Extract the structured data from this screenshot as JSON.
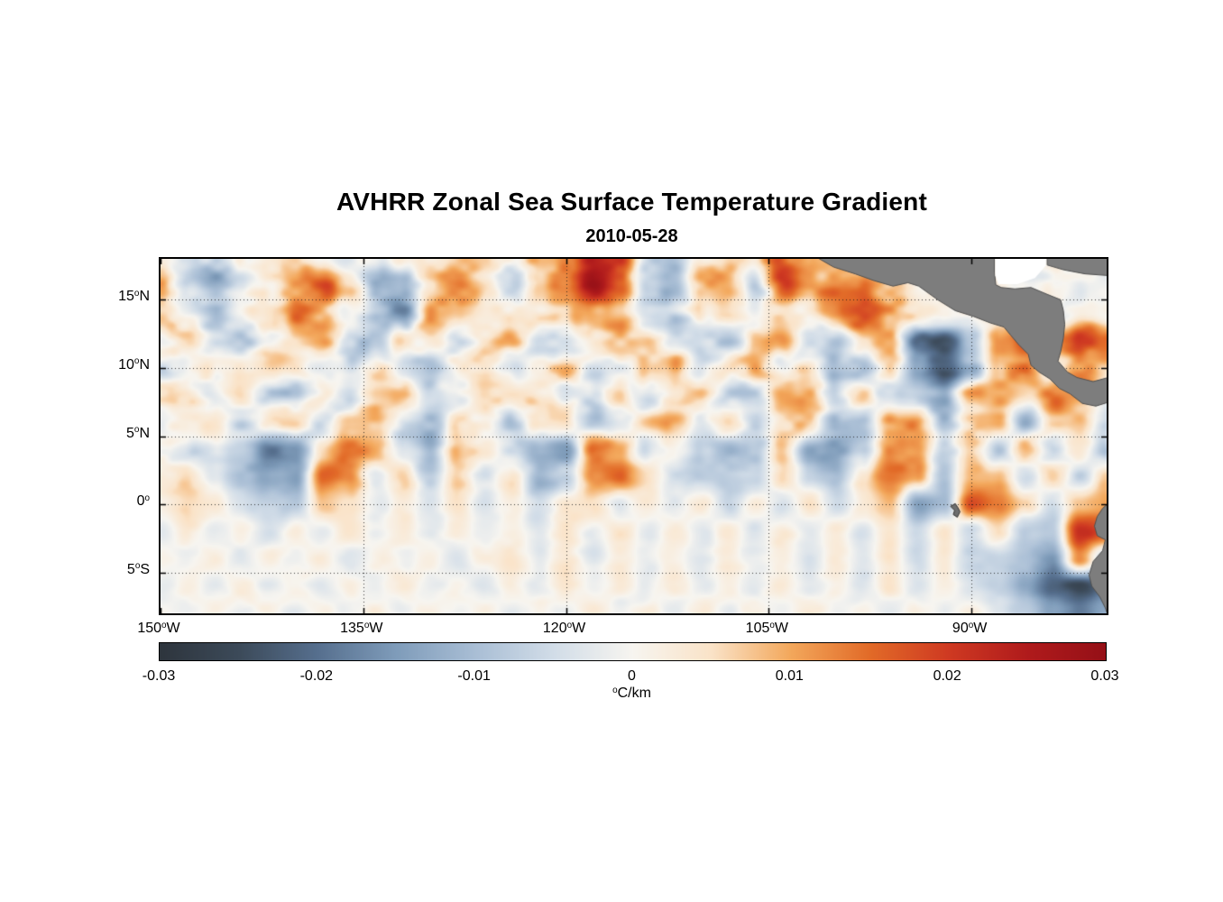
{
  "title": "AVHRR Zonal Sea Surface Temperature Gradient",
  "subtitle": "2010-05-28",
  "chart_data": {
    "type": "heatmap",
    "title": "AVHRR Zonal Sea Surface Temperature Gradient",
    "subtitle": "2010-05-28",
    "lon_range": [
      -150,
      -80
    ],
    "lat_range": [
      -8,
      18
    ],
    "grid_on": true,
    "x_ticks": [
      {
        "lon": -150,
        "prefix": "150",
        "sup": "o",
        "suffix": "W"
      },
      {
        "lon": -135,
        "prefix": "135",
        "sup": "o",
        "suffix": "W"
      },
      {
        "lon": -120,
        "prefix": "120",
        "sup": "o",
        "suffix": "W"
      },
      {
        "lon": -105,
        "prefix": "105",
        "sup": "o",
        "suffix": "W"
      },
      {
        "lon": -90,
        "prefix": "90",
        "sup": "o",
        "suffix": "W"
      }
    ],
    "y_ticks": [
      {
        "lat": 15,
        "prefix": "15",
        "sup": "o",
        "suffix": "N"
      },
      {
        "lat": 10,
        "prefix": "10",
        "sup": "o",
        "suffix": "N"
      },
      {
        "lat": 5,
        "prefix": "5",
        "sup": "o",
        "suffix": "N"
      },
      {
        "lat": 0,
        "prefix": "0",
        "sup": "o",
        "suffix": ""
      },
      {
        "lat": -5,
        "prefix": "5",
        "sup": "o",
        "suffix": "S"
      }
    ],
    "colorbar": {
      "min": -0.03,
      "max": 0.03,
      "ticks": [
        {
          "value": -0.03,
          "label": "-0.03"
        },
        {
          "value": -0.02,
          "label": "-0.02"
        },
        {
          "value": -0.01,
          "label": "-0.01"
        },
        {
          "value": 0,
          "label": "0"
        },
        {
          "value": 0.01,
          "label": "0.01"
        },
        {
          "value": 0.02,
          "label": "0.02"
        },
        {
          "value": 0.03,
          "label": "0.03"
        }
      ],
      "unit": {
        "prefix": "",
        "sup": "o",
        "suffix": "C/km"
      },
      "stops": [
        {
          "v": -0.03,
          "c": "#2e353d"
        },
        {
          "v": -0.025,
          "c": "#3c4a59"
        },
        {
          "v": -0.02,
          "c": "#566f8e"
        },
        {
          "v": -0.015,
          "c": "#7f9cba"
        },
        {
          "v": -0.01,
          "c": "#a9bed5"
        },
        {
          "v": -0.005,
          "c": "#d2dde8"
        },
        {
          "v": 0.0,
          "c": "#f7f5f0"
        },
        {
          "v": 0.005,
          "c": "#fae3c8"
        },
        {
          "v": 0.01,
          "c": "#f3a85c"
        },
        {
          "v": 0.015,
          "c": "#e26b28"
        },
        {
          "v": 0.02,
          "c": "#cf3a22"
        },
        {
          "v": 0.025,
          "c": "#b01b1c"
        },
        {
          "v": 0.03,
          "c": "#951017"
        }
      ]
    },
    "grid": {
      "lon_start": -150,
      "lon_step": 2,
      "lat_start": 18,
      "lat_step": -2,
      "values_scale": 0.001,
      "values": [
        [
          2,
          -4,
          -8,
          3,
          6,
          8,
          4,
          -3,
          -6,
          2,
          7,
          9,
          3,
          -2,
          6,
          14,
          24,
          20,
          -5,
          -12,
          6,
          10,
          4,
          15,
          10,
          8,
          0,
          0,
          0,
          0,
          0,
          0,
          0,
          0,
          0,
          0
        ],
        [
          12,
          -6,
          -12,
          -4,
          4,
          12,
          16,
          5,
          -12,
          -10,
          6,
          10,
          5,
          -4,
          8,
          16,
          26,
          18,
          -8,
          -10,
          8,
          12,
          -6,
          18,
          8,
          12,
          14,
          10,
          0,
          0,
          0,
          0,
          0,
          0,
          0,
          0
        ],
        [
          8,
          -4,
          -8,
          2,
          6,
          14,
          8,
          -2,
          -10,
          -16,
          12,
          8,
          2,
          4,
          6,
          10,
          12,
          8,
          -4,
          -8,
          4,
          8,
          2,
          8,
          4,
          12,
          16,
          8,
          4,
          0,
          0,
          0,
          0,
          0,
          0,
          0
        ],
        [
          2,
          4,
          -4,
          -6,
          2,
          6,
          10,
          -6,
          -8,
          4,
          6,
          -4,
          6,
          8,
          -6,
          -6,
          4,
          10,
          6,
          -4,
          -8,
          -10,
          6,
          10,
          -6,
          -10,
          6,
          10,
          -20,
          -24,
          -14,
          14,
          18,
          10,
          20,
          16
        ],
        [
          -6,
          -3,
          4,
          6,
          8,
          6,
          -4,
          -6,
          4,
          -8,
          -8,
          4,
          6,
          -3,
          6,
          8,
          -4,
          -6,
          8,
          10,
          -6,
          4,
          8,
          -4,
          6,
          -8,
          -12,
          6,
          -16,
          -22,
          -12,
          12,
          14,
          0,
          12,
          8
        ],
        [
          4,
          6,
          -4,
          6,
          -6,
          -8,
          4,
          -6,
          6,
          8,
          -6,
          -4,
          6,
          8,
          6,
          -4,
          -5,
          6,
          -6,
          4,
          8,
          -6,
          -8,
          8,
          10,
          -6,
          4,
          -6,
          -8,
          -10,
          8,
          10,
          6,
          14,
          10,
          0
        ],
        [
          -4,
          4,
          6,
          -4,
          4,
          6,
          -6,
          4,
          6,
          -6,
          -10,
          6,
          4,
          -6,
          4,
          6,
          -8,
          -6,
          6,
          8,
          -4,
          6,
          -6,
          4,
          8,
          -8,
          -10,
          8,
          10,
          -8,
          6,
          8,
          -10,
          6,
          8,
          -6
        ],
        [
          2,
          -4,
          -6,
          -10,
          -18,
          -14,
          4,
          14,
          10,
          -4,
          -12,
          8,
          4,
          -6,
          -10,
          -14,
          16,
          12,
          -4,
          4,
          -6,
          -12,
          -10,
          8,
          -12,
          -14,
          -8,
          12,
          14,
          -6,
          6,
          -8,
          8,
          -6,
          6,
          -8
        ],
        [
          4,
          6,
          -4,
          -8,
          -14,
          -16,
          16,
          12,
          -4,
          6,
          -8,
          6,
          -4,
          6,
          -12,
          -8,
          12,
          14,
          6,
          -4,
          -8,
          -8,
          -6,
          6,
          -8,
          -10,
          6,
          14,
          10,
          -8,
          10,
          8,
          -6,
          6,
          -6,
          8
        ],
        [
          2,
          6,
          4,
          -4,
          -6,
          -8,
          8,
          4,
          -3,
          3,
          -4,
          4,
          -3,
          3,
          -6,
          4,
          6,
          -4,
          3,
          -3,
          4,
          -6,
          4,
          -4,
          6,
          -6,
          4,
          8,
          -14,
          -10,
          18,
          14,
          6,
          -6,
          8,
          10
        ],
        [
          -2,
          3,
          -3,
          2,
          -4,
          3,
          -3,
          4,
          -2,
          2,
          -3,
          3,
          -2,
          2,
          -4,
          3,
          -3,
          4,
          -2,
          3,
          -3,
          4,
          -4,
          3,
          -3,
          4,
          -4,
          3,
          -6,
          4,
          -6,
          6,
          -8,
          -8,
          22,
          18
        ],
        [
          2,
          -2,
          3,
          -3,
          2,
          -2,
          3,
          -3,
          2,
          -2,
          3,
          -3,
          2,
          4,
          -2,
          4,
          -3,
          3,
          -2,
          2,
          -3,
          3,
          -2,
          2,
          -4,
          3,
          -3,
          4,
          -4,
          3,
          -6,
          -8,
          -10,
          -16,
          12,
          -8
        ],
        [
          -2,
          2,
          -2,
          3,
          -2,
          2,
          -3,
          2,
          -2,
          3,
          -2,
          2,
          -3,
          2,
          -2,
          3,
          -2,
          2,
          -3,
          3,
          -2,
          2,
          -3,
          3,
          -2,
          2,
          -4,
          4,
          -3,
          3,
          -4,
          -6,
          -12,
          -22,
          -26,
          -20
        ],
        [
          2,
          -2,
          2,
          -2,
          2,
          -3,
          2,
          -2,
          3,
          -2,
          2,
          -2,
          2,
          -3,
          2,
          -2,
          3,
          -2,
          2,
          -2,
          3,
          -3,
          2,
          -2,
          3,
          -2,
          2,
          -3,
          2,
          -2,
          3,
          -4,
          -8,
          -14,
          -18,
          -12
        ]
      ]
    },
    "land_color": "#7d7d7d",
    "land_edge": "#4f4f4f",
    "land_polygons": {
      "central_america": [
        [
          -101.6,
          18.2
        ],
        [
          -100.2,
          17.4
        ],
        [
          -98.6,
          16.9
        ],
        [
          -97.2,
          16.4
        ],
        [
          -95.8,
          16.0
        ],
        [
          -94.7,
          16.25
        ],
        [
          -93.9,
          16.0
        ],
        [
          -92.5,
          15.0
        ],
        [
          -91.2,
          14.2
        ],
        [
          -89.9,
          13.8
        ],
        [
          -88.6,
          13.3
        ],
        [
          -87.6,
          13.0
        ],
        [
          -87.1,
          12.4
        ],
        [
          -86.5,
          11.7
        ],
        [
          -85.8,
          11.0
        ],
        [
          -85.6,
          10.2
        ],
        [
          -85.0,
          9.7
        ],
        [
          -84.2,
          9.2
        ],
        [
          -83.5,
          8.5
        ],
        [
          -82.7,
          8.1
        ],
        [
          -81.8,
          7.4
        ],
        [
          -80.8,
          7.2
        ],
        [
          -79.5,
          7.6
        ],
        [
          -79.5,
          9.4
        ],
        [
          -81.0,
          9.0
        ],
        [
          -82.2,
          9.3
        ],
        [
          -82.9,
          9.7
        ],
        [
          -83.6,
          10.5
        ],
        [
          -83.4,
          11.2
        ],
        [
          -83.2,
          12.2
        ],
        [
          -83.1,
          13.2
        ],
        [
          -83.2,
          14.2
        ],
        [
          -83.4,
          15.0
        ],
        [
          -84.4,
          15.4
        ],
        [
          -85.6,
          15.9
        ],
        [
          -86.8,
          15.8
        ],
        [
          -87.8,
          15.9
        ],
        [
          -88.2,
          16.1
        ],
        [
          -88.3,
          17.0
        ],
        [
          -88.3,
          18.2
        ]
      ],
      "corner_wedge": [
        [
          -84.4,
          18.2
        ],
        [
          -79.5,
          18.2
        ],
        [
          -79.5,
          16.75
        ],
        [
          -81.6,
          16.9
        ],
        [
          -83.2,
          17.2
        ],
        [
          -84.4,
          17.55
        ]
      ],
      "caribbean_gap": [
        [
          -88.25,
          18.2
        ],
        [
          -84.5,
          18.2
        ],
        [
          -84.5,
          17.5
        ],
        [
          -85.3,
          16.6
        ],
        [
          -86.6,
          16.15
        ],
        [
          -88.0,
          16.15
        ],
        [
          -88.25,
          16.8
        ]
      ],
      "south_america": [
        [
          -79.5,
          0.4
        ],
        [
          -80.3,
          -0.3
        ],
        [
          -80.7,
          -0.9
        ],
        [
          -80.9,
          -1.6
        ],
        [
          -80.7,
          -2.3
        ],
        [
          -80.1,
          -2.6
        ],
        [
          -80.3,
          -3.4
        ],
        [
          -81.0,
          -4.2
        ],
        [
          -81.3,
          -5.2
        ],
        [
          -81.1,
          -6.0
        ],
        [
          -80.5,
          -6.8
        ],
        [
          -80.1,
          -7.6
        ],
        [
          -79.9,
          -8.2
        ],
        [
          -79.5,
          -8.2
        ]
      ],
      "galapagos": [
        [
          -91.55,
          -0.15
        ],
        [
          -91.2,
          0.05
        ],
        [
          -91.0,
          -0.25
        ],
        [
          -90.85,
          -0.55
        ],
        [
          -91.05,
          -0.95
        ],
        [
          -91.35,
          -0.75
        ],
        [
          -91.25,
          -0.45
        ]
      ]
    },
    "render": {
      "noise_seed_1": 11,
      "noise_seed_2": 29,
      "noise_amp_south": 0.0022,
      "noise_amp_north": 0.0062
    }
  }
}
